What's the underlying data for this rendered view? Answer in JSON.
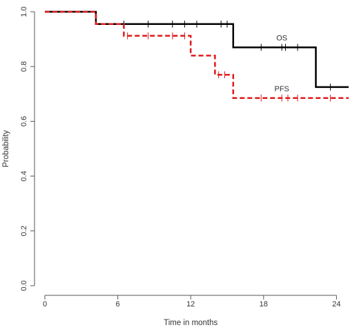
{
  "chart_data": {
    "type": "line",
    "title": "",
    "xlabel": "Time in months",
    "ylabel": "Probability",
    "xlim": [
      0,
      25
    ],
    "ylim": [
      0,
      1.0
    ],
    "x_ticks": [
      0,
      6,
      12,
      18,
      24
    ],
    "y_ticks": [
      0.0,
      0.2,
      0.4,
      0.6,
      0.8,
      1.0
    ],
    "y_tick_labels": [
      "0.0",
      "0.2",
      "0.4",
      "0.6",
      "0.8",
      "1.0"
    ],
    "grid": false,
    "legend": "none",
    "series": [
      {
        "name": "OS",
        "color": "#000000",
        "line_style": "solid",
        "step": [
          [
            0,
            1.0
          ],
          [
            4.2,
            1.0
          ],
          [
            4.2,
            0.955
          ],
          [
            15.5,
            0.955
          ],
          [
            15.5,
            0.87
          ],
          [
            22.3,
            0.87
          ],
          [
            22.3,
            0.725
          ],
          [
            25,
            0.725
          ]
        ],
        "censor_x": [
          6.5,
          8.5,
          10.5,
          11.5,
          12.5,
          14.5,
          15.0,
          17.8,
          19.5,
          19.8,
          20.8,
          23.5
        ],
        "label_at": [
          19.5,
          0.895
        ]
      },
      {
        "name": "PFS",
        "color": "#e0191b",
        "line_style": "dashed",
        "step": [
          [
            0,
            1.0
          ],
          [
            4.2,
            1.0
          ],
          [
            4.2,
            0.955
          ],
          [
            6.5,
            0.955
          ],
          [
            6.5,
            0.912
          ],
          [
            12.0,
            0.912
          ],
          [
            12.0,
            0.84
          ],
          [
            14.0,
            0.84
          ],
          [
            14.0,
            0.77
          ],
          [
            15.5,
            0.77
          ],
          [
            15.5,
            0.685
          ],
          [
            25,
            0.685
          ]
        ],
        "censor_x": [
          6.8,
          8.5,
          10.5,
          11.5,
          14.3,
          14.8,
          17.8,
          19.5,
          20.0,
          20.8,
          23.5
        ],
        "label_at": [
          19.5,
          0.71
        ]
      }
    ]
  }
}
